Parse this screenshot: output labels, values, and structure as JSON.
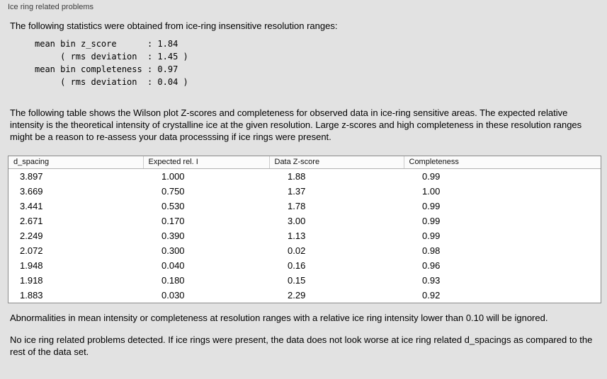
{
  "panel": {
    "title": "Ice ring related problems"
  },
  "intro": "The following statistics were obtained from ice-ring insensitive resolution ranges:",
  "stats_block": {
    "lines": [
      "mean bin z_score      : 1.84",
      "     ( rms deviation  : 1.45 )",
      "mean bin completeness : 0.97",
      "     ( rms deviation  : 0.04 )"
    ]
  },
  "description": "The following table shows the Wilson plot Z-scores and completeness for observed data in ice-ring sensitive areas. The expected relative intensity is the theoretical intensity of crystalline ice at the given resolution. Large z-scores and high completeness in these resolution ranges might be a reason to re-assess your data processsing if ice rings were present.",
  "table": {
    "columns": [
      "d_spacing",
      "Expected rel. I",
      "Data Z-score",
      "Completeness"
    ],
    "rows": [
      [
        "3.897",
        "1.000",
        "1.88",
        "0.99"
      ],
      [
        "3.669",
        "0.750",
        "1.37",
        "1.00"
      ],
      [
        "3.441",
        "0.530",
        "1.78",
        "0.99"
      ],
      [
        "2.671",
        "0.170",
        "3.00",
        "0.99"
      ],
      [
        "2.249",
        "0.390",
        "1.13",
        "0.99"
      ],
      [
        "2.072",
        "0.300",
        "0.02",
        "0.98"
      ],
      [
        "1.948",
        "0.040",
        "0.16",
        "0.96"
      ],
      [
        "1.918",
        "0.180",
        "0.15",
        "0.93"
      ],
      [
        "1.883",
        "0.030",
        "2.29",
        "0.92"
      ]
    ]
  },
  "note": "Abnormalities in mean intensity or completeness at resolution ranges with a relative ice ring intensity lower than 0.10 will be ignored.",
  "conclusion": "No ice ring related problems detected. If ice rings were present, the data does not look worse at ice ring related d_spacings as compared to the rest of the data set."
}
